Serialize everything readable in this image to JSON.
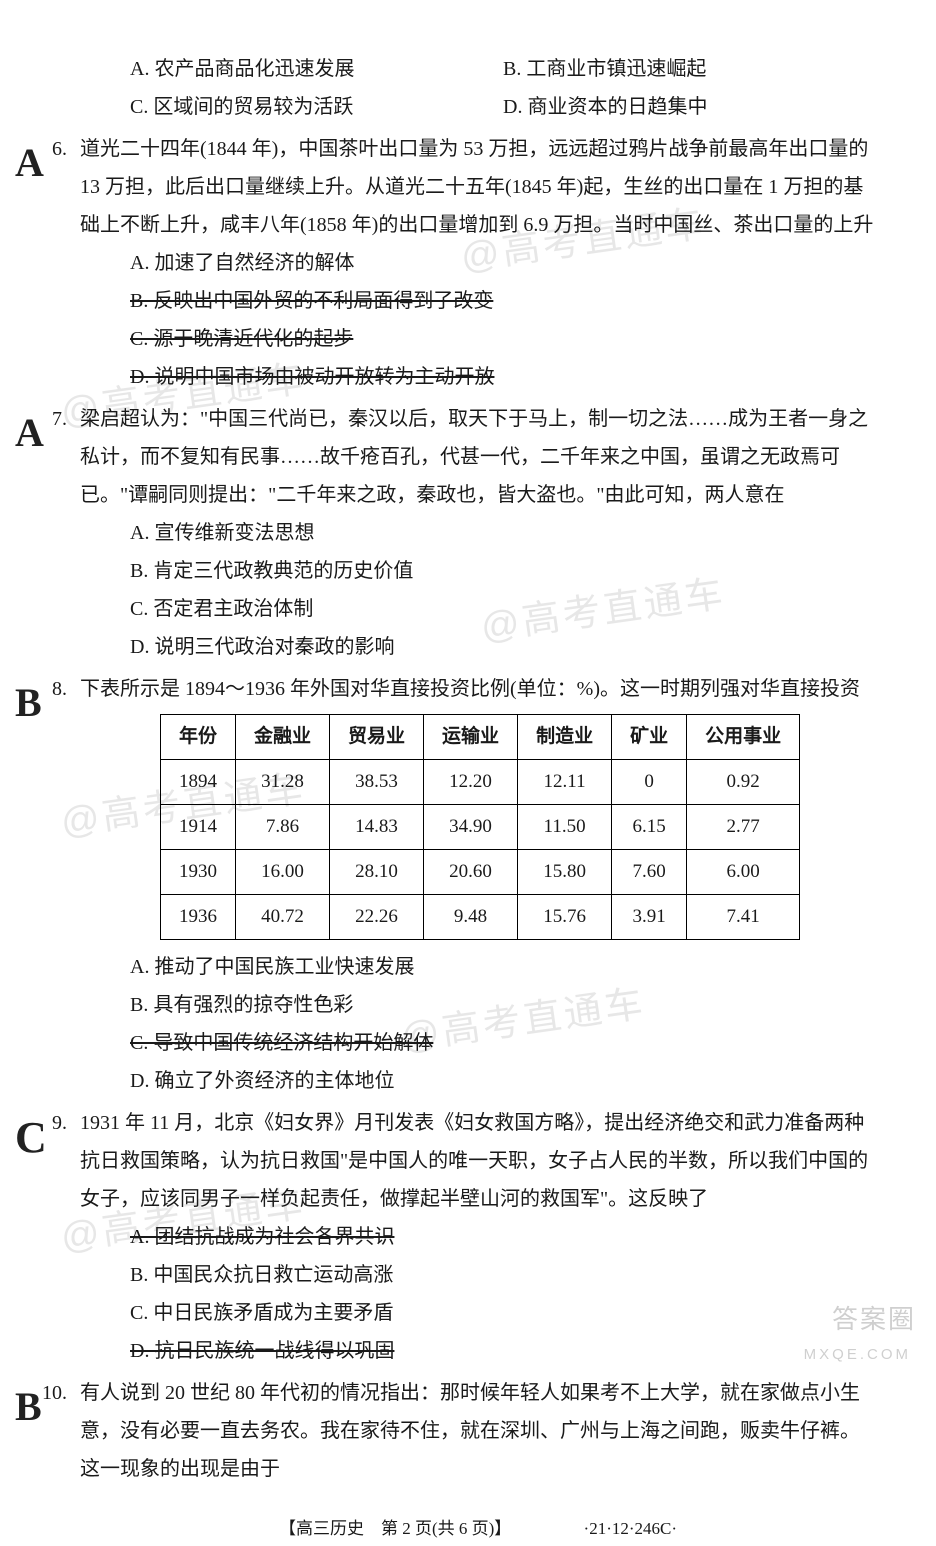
{
  "watermarks": {
    "text": "@高考直通车"
  },
  "q5_options": {
    "a": "A. 农产品商品化迅速发展",
    "b": "B. 工商业市镇迅速崛起",
    "c": "C. 区域间的贸易较为活跃",
    "d": "D. 商业资本的日趋集中"
  },
  "q6": {
    "num": "6.",
    "mark": "A",
    "text": "道光二十四年(1844 年)，中国茶叶出口量为 53 万担，远远超过鸦片战争前最高年出口量的 13 万担，此后出口量继续上升。从道光二十五年(1845 年)起，生丝的出口量在 1 万担的基础上不断上升，咸丰八年(1858 年)的出口量增加到 6.9 万担。当时中国丝、茶出口量的上升",
    "a": "A. 加速了自然经济的解体",
    "b": "B. 反映出中国外贸的不利局面得到了改变",
    "c": "C. 源于晚清近代化的起步",
    "d": "D. 说明中国市场由被动开放转为主动开放"
  },
  "q7": {
    "num": "7.",
    "mark": "A",
    "text": "梁启超认为：\"中国三代尚已，秦汉以后，取天下于马上，制一切之法……成为王者一身之私计，而不复知有民事……故千疮百孔，代甚一代，二千年来之中国，虽谓之无政焉可已。\"谭嗣同则提出：\"二千年来之政，秦政也，皆大盗也。\"由此可知，两人意在",
    "a": "A. 宣传维新变法思想",
    "b": "B. 肯定三代政教典范的历史价值",
    "c": "C. 否定君主政治体制",
    "d": "D. 说明三代政治对秦政的影响"
  },
  "q8": {
    "num": "8.",
    "mark": "B",
    "text": "下表所示是 1894～1936 年外国对华直接投资比例(单位：%)。这一时期列强对华直接投资",
    "table": {
      "headers": [
        "年份",
        "金融业",
        "贸易业",
        "运输业",
        "制造业",
        "矿业",
        "公用事业"
      ],
      "rows": [
        [
          "1894",
          "31.28",
          "38.53",
          "12.20",
          "12.11",
          "0",
          "0.92"
        ],
        [
          "1914",
          "7.86",
          "14.83",
          "34.90",
          "11.50",
          "6.15",
          "2.77"
        ],
        [
          "1930",
          "16.00",
          "28.10",
          "20.60",
          "15.80",
          "7.60",
          "6.00"
        ],
        [
          "1936",
          "40.72",
          "22.26",
          "9.48",
          "15.76",
          "3.91",
          "7.41"
        ]
      ]
    },
    "a": "A. 推动了中国民族工业快速发展",
    "b": "B. 具有强烈的掠夺性色彩",
    "c": "C. 导致中国传统经济结构开始解体",
    "d": "D. 确立了外资经济的主体地位"
  },
  "q9": {
    "num": "9.",
    "mark": "C",
    "text": "1931 年 11 月，北京《妇女界》月刊发表《妇女救国方略》，提出经济绝交和武力准备两种抗日救国策略，认为抗日救国\"是中国人的唯一天职，女子占人民的半数，所以我们中国的女子，应该同男子一样负起责任，做撑起半壁山河的救国军\"。这反映了",
    "a": "A. 团结抗战成为社会各界共识",
    "b": "B. 中国民众抗日救亡运动高涨",
    "c": "C. 中日民族矛盾成为主要矛盾",
    "d": "D. 抗日民族统一战线得以巩固"
  },
  "q10": {
    "num": "10.",
    "mark": "B",
    "text": "有人说到 20 世纪 80 年代初的情况指出：那时候年轻人如果考不上大学，就在家做点小生意，没有必要一直去务农。我在家待不住，就在深圳、广州与上海之间跑，贩卖牛仔裤。这一现象的出现是由于"
  },
  "footer": {
    "text": "【高三历史　第 2 页(共 6 页)】",
    "code": "·21·12·246C·"
  },
  "corner": {
    "logo": "答案圈",
    "site": "MXQE.COM"
  }
}
